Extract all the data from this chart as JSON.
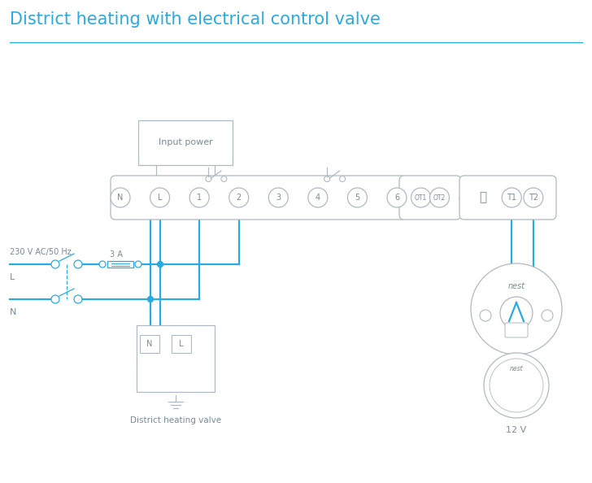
{
  "title": "District heating with electrical control valve",
  "title_color": "#29abe2",
  "title_fontsize": 15,
  "line_color": "#29abe2",
  "gray_color": "#b0b8c0",
  "dark_gray": "#7a8a96",
  "bg_color": "#ffffff",
  "terminal_labels": [
    "N",
    "L",
    "1",
    "2",
    "3",
    "4",
    "5",
    "6"
  ],
  "ot_labels": [
    "OT1",
    "OT2"
  ],
  "t_labels": [
    "T1",
    "T2"
  ],
  "label_230v": "230 V AC/50 Hz",
  "label_L": "L",
  "label_N": "N",
  "label_3A": "3 A",
  "label_input_power": "Input power",
  "label_district": "District heating valve",
  "label_12v": "12 V",
  "label_nest": "nest",
  "fig_w": 7.28,
  "fig_h": 5.94,
  "dpi": 100
}
